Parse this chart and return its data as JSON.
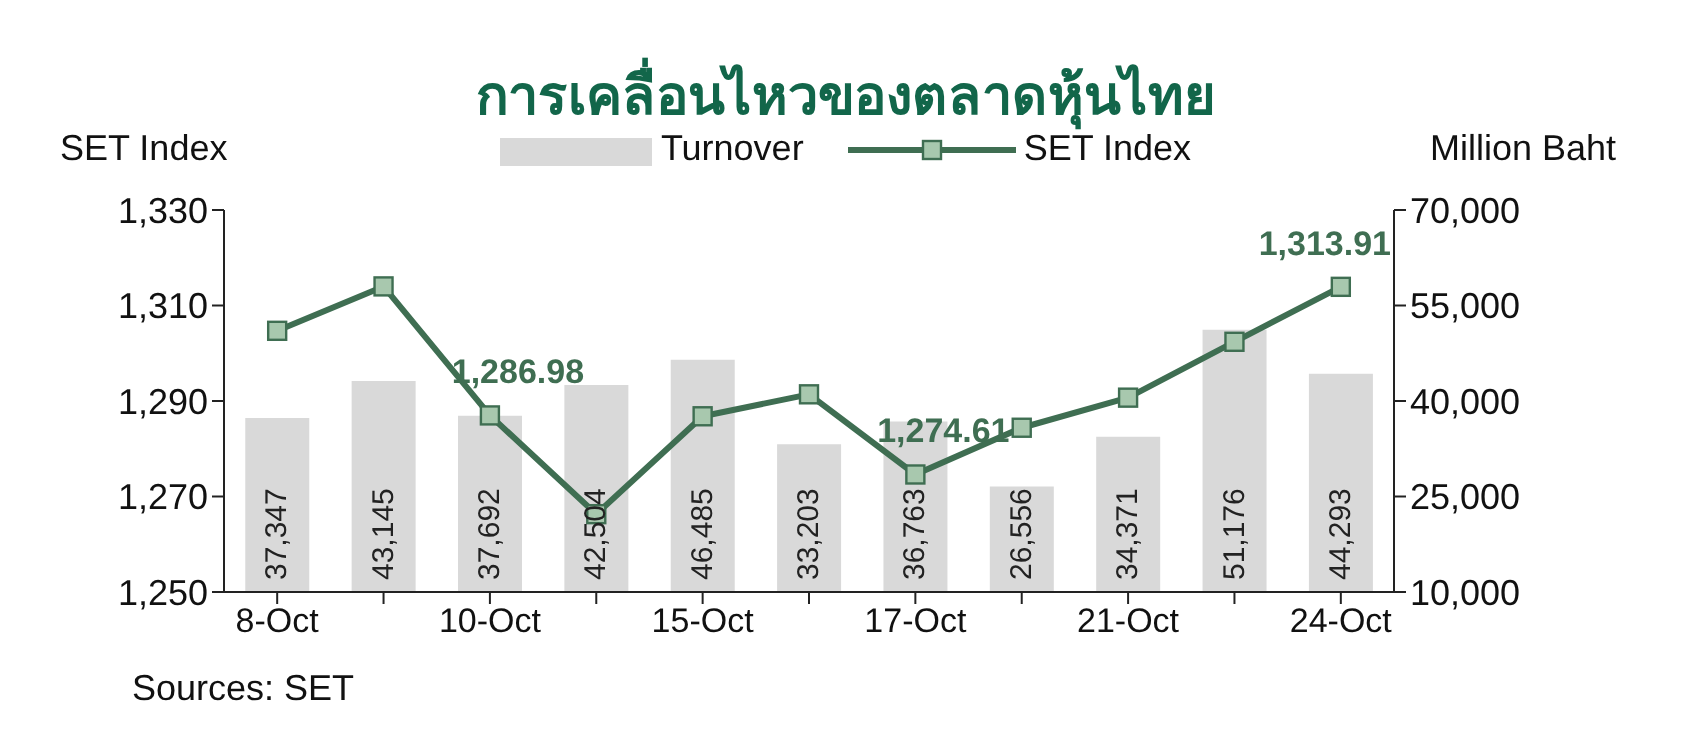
{
  "chart_data": {
    "type": "bar",
    "title": "การเคลื่อนไหวของตลาดหุ้นไทย",
    "ylabel": "SET Index",
    "y2label": "Million Baht",
    "annotations": [
      "Sources: SET"
    ],
    "categories": [
      "8-Oct",
      null,
      "10-Oct",
      null,
      "15-Oct",
      null,
      "17-Oct",
      null,
      "21-Oct",
      null,
      "24-Oct"
    ],
    "series": [
      {
        "name": "Turnover",
        "axis": "y2",
        "color": "#d9d9d9",
        "values": [
          37347,
          43145,
          37692,
          42504,
          46485,
          33203,
          36763,
          26556,
          34371,
          51176,
          44293
        ],
        "value_labels": [
          "37,347",
          "43,145",
          "37,692",
          "42,504",
          "46,485",
          "33,203",
          "36,763",
          "26,556",
          "34,371",
          "51,176",
          "44,293"
        ]
      },
      {
        "name": "SET Index",
        "type": "line",
        "axis": "y",
        "color": "#3f6e52",
        "values": [
          1304.7,
          1314.0,
          1286.98,
          1266.3,
          1286.8,
          1291.4,
          1274.61,
          1284.4,
          1290.7,
          1302.4,
          1313.91
        ],
        "value_labels": [
          null,
          null,
          "1,286.98",
          null,
          null,
          null,
          "1,274.61",
          null,
          null,
          null,
          "1,313.91"
        ]
      }
    ],
    "ylim": [
      1250,
      1330
    ],
    "yticks": [
      {
        "value": 1250,
        "label": "1,250"
      },
      {
        "value": 1270,
        "label": "1,270"
      },
      {
        "value": 1290,
        "label": "1,290"
      },
      {
        "value": 1310,
        "label": "1,310"
      },
      {
        "value": 1330,
        "label": "1,330"
      }
    ],
    "y2lim": [
      10000,
      70000
    ],
    "y2ticks": [
      {
        "value": 10000,
        "label": "10,000"
      },
      {
        "value": 25000,
        "label": "25,000"
      },
      {
        "value": 40000,
        "label": "40,000"
      },
      {
        "value": 55000,
        "label": "55,000"
      },
      {
        "value": 70000,
        "label": "70,000"
      }
    ],
    "grid": false,
    "legend": "top",
    "marker": "square",
    "line_style": "solid"
  }
}
